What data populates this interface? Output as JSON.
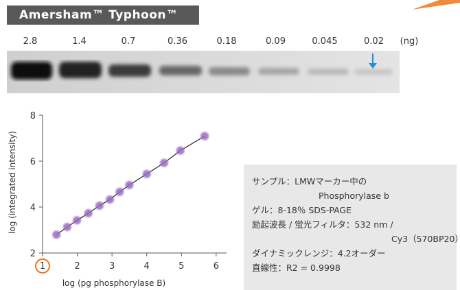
{
  "header": {
    "title": "Amersham™ Typhoon™"
  },
  "gel": {
    "lanes": [
      "2.8",
      "1.4",
      "0.7",
      "0.36",
      "0.18",
      "0.09",
      "0.045",
      "0.02"
    ],
    "unit": "(ng)"
  },
  "info": {
    "lines": [
      "サンプル：LMWマーカー中の",
      "Phosphorylase b",
      "ゲル：8-18％ SDS-PAGE",
      "励起波長 / 蛍光フィルタ：532 nm /",
      "Cy3（570BP20）",
      "ダイナミックレンジ：4.2オーダー",
      "直線性：R2 = 0.9998"
    ]
  },
  "chart_data": {
    "type": "scatter",
    "x_label": "log (pg phosphorylase B)",
    "y_label": "log (integrated intensity)",
    "x": [
      1.4,
      1.71,
      1.99,
      2.32,
      2.64,
      2.94,
      3.22,
      3.5,
      4.0,
      4.5,
      4.97,
      5.67
    ],
    "series": [
      {
        "color": "#9a6ac0",
        "values": [
          2.8,
          3.13,
          3.42,
          3.73,
          4.06,
          4.33,
          4.66,
          4.96,
          5.44,
          5.92,
          6.46,
          7.09
        ]
      }
    ],
    "xlim": [
      1,
      6.3
    ],
    "ylim": [
      2,
      8
    ],
    "xticks": [
      1,
      2,
      3,
      4,
      5,
      6
    ],
    "yticks": [
      2,
      4,
      6,
      8
    ],
    "highlight_xtick_color": "#e8731f"
  }
}
